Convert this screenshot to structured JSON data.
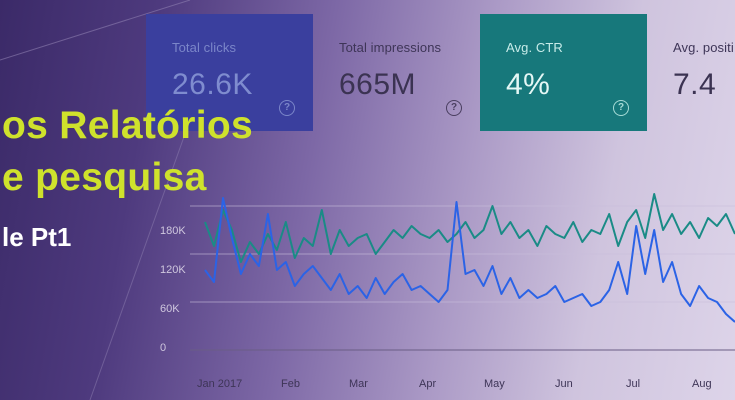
{
  "cards": [
    {
      "id": "clicks",
      "label": "Total clicks",
      "value": "26.6K",
      "help": "?"
    },
    {
      "id": "impressions",
      "label": "Total impressions",
      "value": "665M",
      "help": "?"
    },
    {
      "id": "ctr",
      "label": "Avg. CTR",
      "value": "4%",
      "help": "?"
    },
    {
      "id": "position",
      "label": "Avg. positi",
      "value": "7.4"
    }
  ],
  "banner": {
    "line1": "os Relatórios",
    "line2": "e pesquisa",
    "line3": "le Pt1"
  },
  "colors": {
    "clicks_card": "#3a3f9e",
    "ctr_card": "#17787b",
    "headline": "#cfe22c",
    "clicks_line": "#2b63e6",
    "impressions_line": "#1a8b86"
  },
  "chart_data": {
    "type": "line",
    "ylim": [
      0,
      200000
    ],
    "y_ticks": [
      "180K",
      "120K",
      "60K",
      "0"
    ],
    "x_ticks": [
      "Jan 2017",
      "Feb",
      "Mar",
      "Apr",
      "May",
      "Jun",
      "Jul",
      "Aug"
    ],
    "series": [
      {
        "color": "#1a8b86",
        "values": [
          160000,
          130000,
          175000,
          150000,
          110000,
          135000,
          120000,
          145000,
          125000,
          160000,
          115000,
          140000,
          130000,
          175000,
          120000,
          150000,
          130000,
          140000,
          145000,
          120000,
          135000,
          150000,
          140000,
          155000,
          145000,
          140000,
          150000,
          135000,
          145000,
          160000,
          140000,
          150000,
          180000,
          145000,
          160000,
          140000,
          150000,
          130000,
          155000,
          145000,
          140000,
          160000,
          135000,
          150000,
          145000,
          170000,
          130000,
          160000,
          175000,
          140000,
          195000,
          150000,
          170000,
          145000,
          160000,
          140000,
          165000,
          155000,
          170000,
          145000
        ]
      },
      {
        "color": "#2b63e6",
        "values": [
          100000,
          85000,
          190000,
          140000,
          95000,
          120000,
          105000,
          170000,
          100000,
          110000,
          80000,
          95000,
          105000,
          90000,
          75000,
          95000,
          70000,
          80000,
          65000,
          90000,
          70000,
          85000,
          95000,
          75000,
          80000,
          70000,
          60000,
          75000,
          185000,
          95000,
          100000,
          80000,
          105000,
          70000,
          90000,
          65000,
          75000,
          65000,
          70000,
          80000,
          60000,
          65000,
          70000,
          55000,
          60000,
          75000,
          110000,
          70000,
          155000,
          95000,
          150000,
          85000,
          110000,
          70000,
          55000,
          80000,
          65000,
          60000,
          45000,
          35000
        ]
      }
    ]
  }
}
